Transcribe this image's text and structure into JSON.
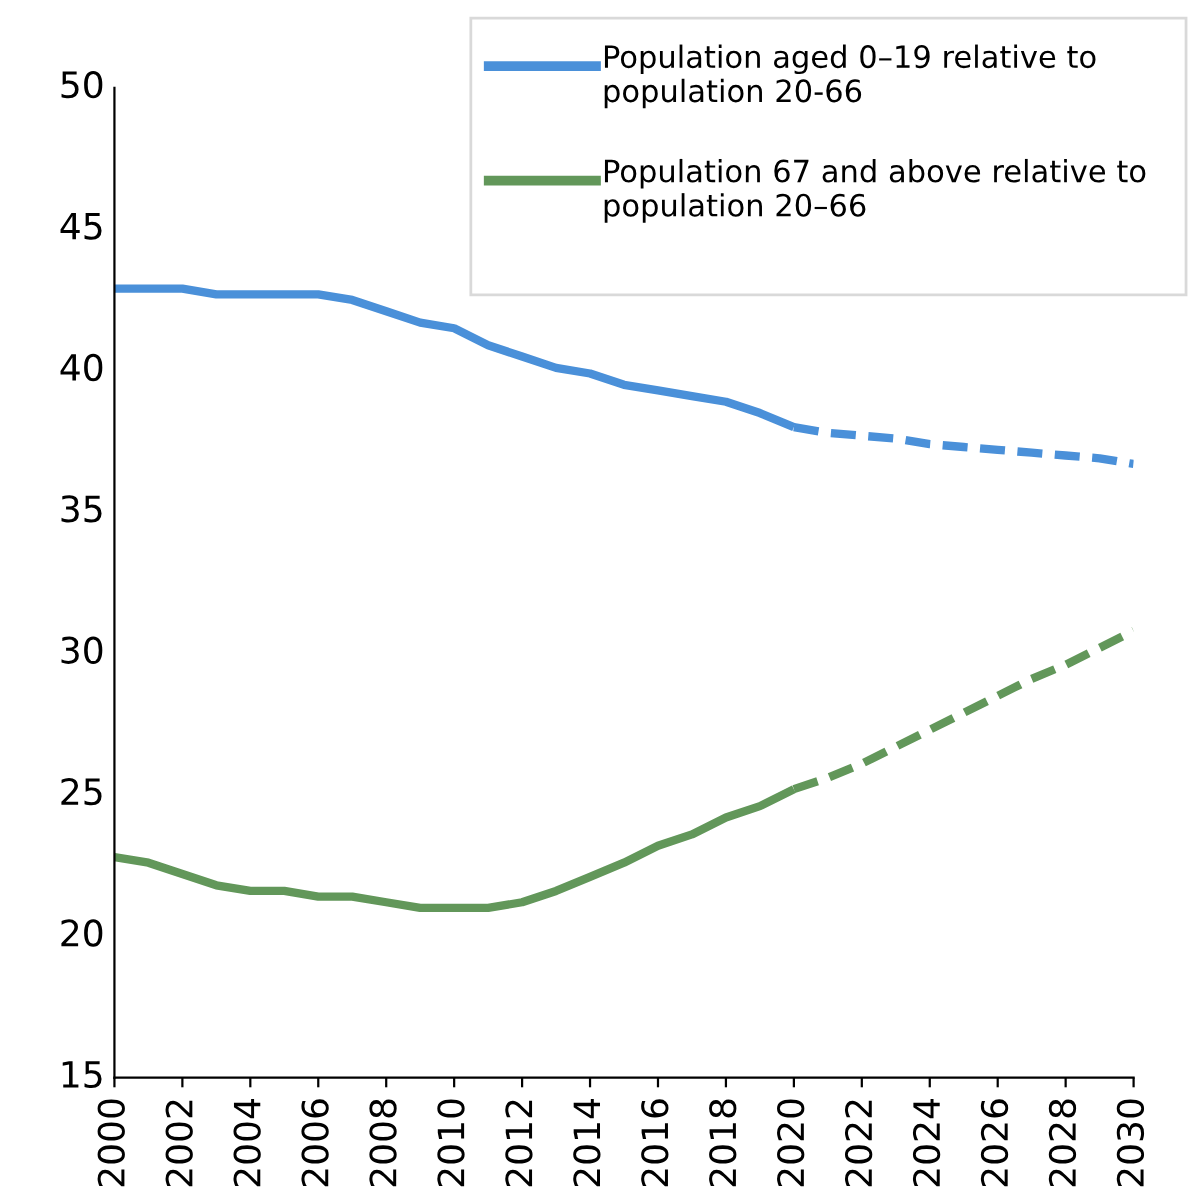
{
  "chart_data": {
    "type": "line",
    "x": [
      2000,
      2001,
      2002,
      2003,
      2004,
      2005,
      2006,
      2007,
      2008,
      2009,
      2010,
      2011,
      2012,
      2013,
      2014,
      2015,
      2016,
      2017,
      2018,
      2019,
      2020
    ],
    "series": [
      {
        "name": "Population aged 0–19 relative to population 20-66",
        "color": "#4a90d9",
        "line_style": "solid",
        "values": [
          42.9,
          42.9,
          42.9,
          42.7,
          42.7,
          42.7,
          42.7,
          42.5,
          42.1,
          41.7,
          41.5,
          40.9,
          40.5,
          40.1,
          39.9,
          39.5,
          39.3,
          39.1,
          38.9,
          38.5,
          38.0
        ]
      },
      {
        "name": "Population 67 and above relative to population 20–66",
        "color": "#62975a",
        "line_style": "solid",
        "values": [
          22.8,
          22.6,
          22.2,
          21.8,
          21.6,
          21.6,
          21.4,
          21.4,
          21.2,
          21.0,
          21.0,
          21.0,
          21.2,
          21.6,
          22.1,
          22.6,
          23.2,
          23.6,
          24.2,
          24.6,
          25.2
        ]
      },
      {
        "color": "#4a90d9",
        "line_style": "dashed",
        "x": [
          2020,
          2021,
          2022,
          2023,
          2024,
          2025,
          2026,
          2027,
          2028,
          2029,
          2030
        ],
        "values": [
          38.0,
          37.8,
          37.7,
          37.6,
          37.4,
          37.3,
          37.2,
          37.1,
          37.0,
          36.9,
          36.7
        ]
      },
      {
        "color": "#62975a",
        "line_style": "dashed",
        "x": [
          2020,
          2021,
          2022,
          2023,
          2024,
          2025,
          2026,
          2027,
          2028,
          2029,
          2030
        ],
        "values": [
          25.2,
          25.6,
          26.1,
          26.7,
          27.3,
          27.9,
          28.5,
          29.1,
          29.6,
          30.2,
          30.8
        ]
      }
    ],
    "xlim": [
      2000,
      2030
    ],
    "xticks": [
      2000,
      2002,
      2004,
      2006,
      2008,
      2010,
      2012,
      2014,
      2016,
      2018,
      2020,
      2022,
      2024,
      2026,
      2028,
      2030
    ],
    "ylim": [
      15,
      50
    ],
    "yticks": [
      15,
      20,
      25,
      30,
      35,
      40,
      45,
      50
    ],
    "grid": false,
    "legend": "top right",
    "marker": "none"
  }
}
